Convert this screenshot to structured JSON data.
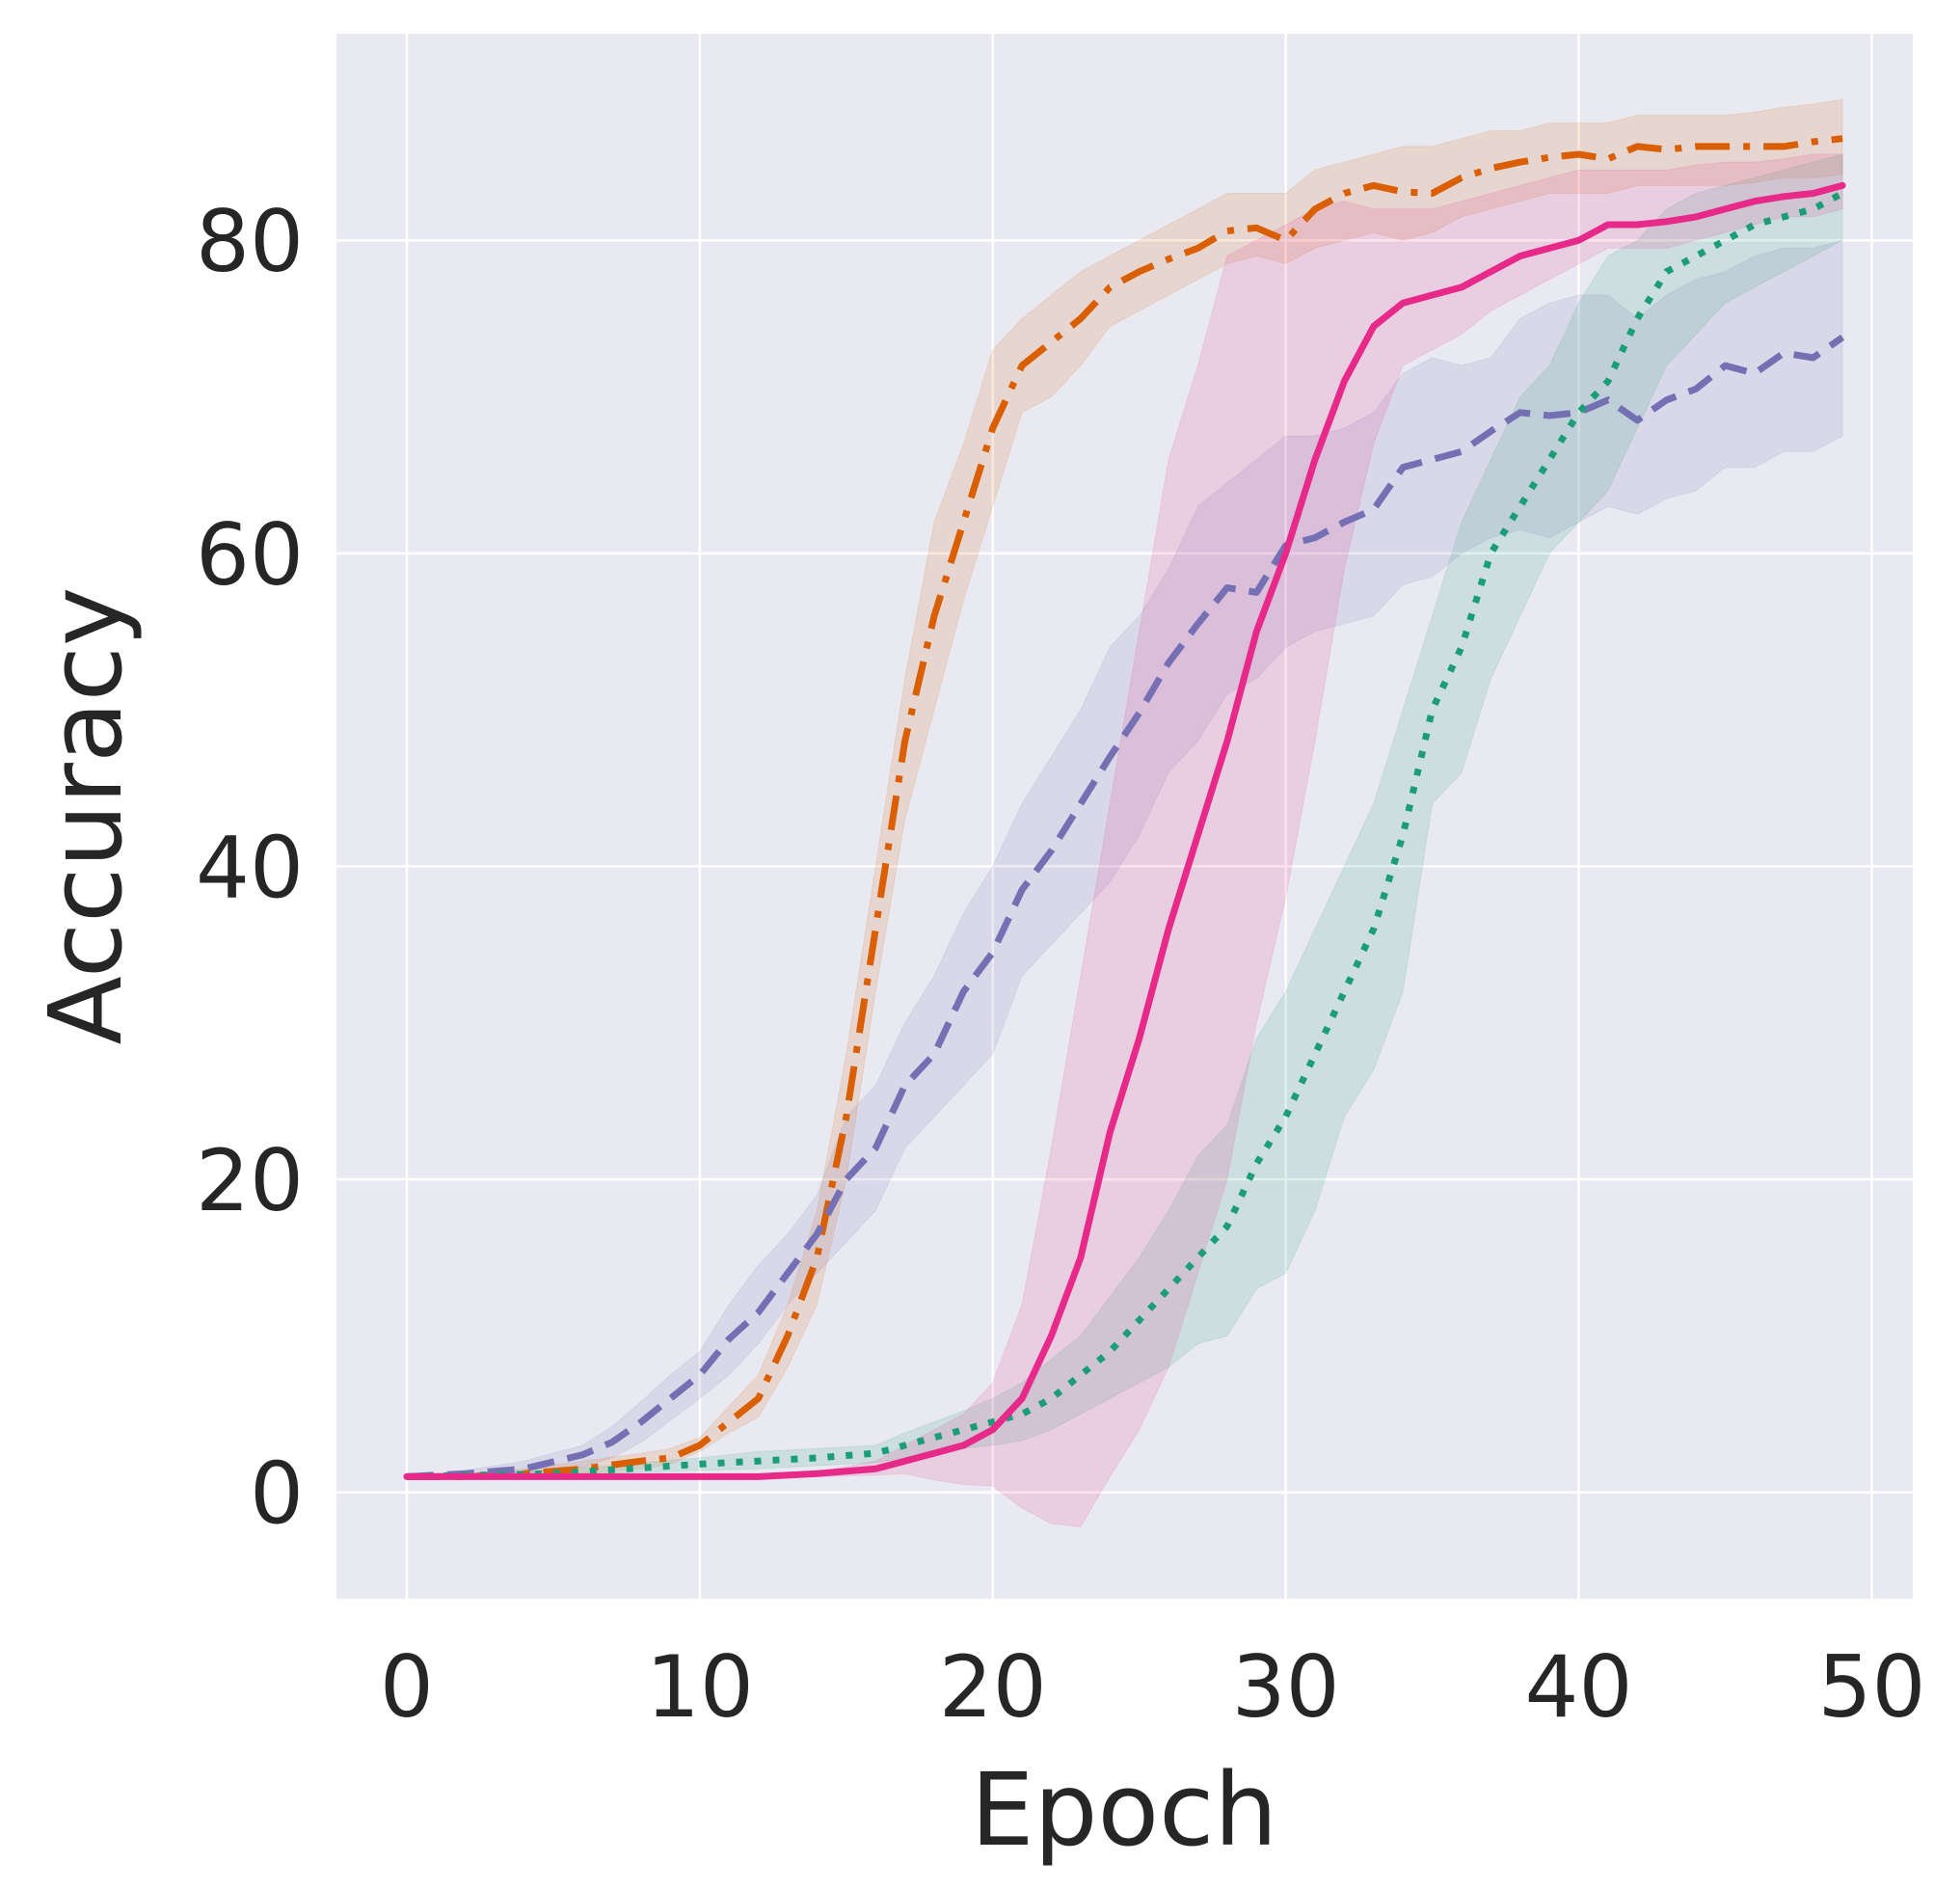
{
  "chart_data": {
    "type": "line",
    "title": "",
    "xlabel": "Epoch",
    "ylabel": "Accuracy",
    "xlim": [
      -2.4,
      51.4
    ],
    "ylim": [
      -6.8,
      93.2
    ],
    "xticks": [
      0,
      10,
      20,
      30,
      40,
      50
    ],
    "xtick_labels": [
      "0",
      "10",
      "20",
      "30",
      "40",
      "50"
    ],
    "yticks": [
      0,
      20,
      40,
      60,
      80
    ],
    "ytick_labels": [
      "0",
      "20",
      "40",
      "60",
      "80"
    ],
    "grid": true,
    "legend": null,
    "background": "#e9e9f1",
    "series": [
      {
        "name": "orange dash-dot",
        "color": "#d95f02",
        "style": "dashdot",
        "x": [
          0,
          2,
          4,
          6,
          8,
          9,
          10,
          11,
          12,
          13,
          14,
          15,
          16,
          17,
          18,
          19,
          20,
          21,
          22,
          23,
          24,
          25,
          26,
          27,
          28,
          29,
          30,
          31,
          32,
          33,
          34,
          35,
          36,
          37,
          38,
          39,
          40,
          41,
          42,
          43,
          44,
          45,
          46,
          47,
          48,
          49
        ],
        "y": [
          1,
          1,
          1.2,
          1.5,
          2,
          2.2,
          3,
          4.5,
          6,
          10,
          15,
          24,
          36,
          48,
          56,
          62,
          68,
          72,
          73.5,
          75,
          77,
          78,
          78.8,
          79.5,
          80.6,
          80.8,
          80,
          82,
          83,
          83.5,
          83.1,
          83,
          84,
          84.6,
          85,
          85.3,
          85.5,
          85.2,
          86,
          85.8,
          86,
          86,
          86,
          86,
          86.3,
          86.5
        ],
        "lower": [
          1,
          1,
          1,
          1.2,
          1.5,
          1.8,
          2.6,
          3.8,
          4.8,
          8,
          12,
          20,
          32,
          43,
          50,
          57,
          63,
          69,
          70,
          72,
          74.5,
          75.5,
          76.5,
          77.5,
          78.5,
          79,
          78.5,
          79.5,
          80,
          80.5,
          80,
          80.5,
          81.5,
          82,
          82.5,
          83,
          83,
          83,
          83.5,
          83.5,
          83.5,
          83.5,
          83.7,
          84,
          84,
          84.2
        ],
        "upper": [
          1,
          1.1,
          1.5,
          2,
          2.5,
          2.8,
          3.5,
          5.5,
          7.5,
          12,
          18,
          28,
          40,
          52,
          62,
          67,
          73,
          75,
          76.5,
          78,
          79,
          80,
          81,
          82,
          83,
          83,
          83,
          84.5,
          85,
          85.5,
          86,
          86,
          86.5,
          87,
          87,
          87.5,
          87.5,
          87.5,
          88,
          88,
          88,
          88,
          88.2,
          88.5,
          88.7,
          89
        ]
      },
      {
        "name": "purple dashed",
        "color": "#7570b3",
        "style": "dashed",
        "x": [
          0,
          2,
          4,
          6,
          7,
          8,
          9,
          10,
          11,
          12,
          13,
          14,
          15,
          16,
          17,
          18,
          19,
          20,
          21,
          22,
          23,
          24,
          25,
          26,
          27,
          28,
          29,
          30,
          31,
          32,
          33,
          34,
          35,
          36,
          37,
          38,
          39,
          40,
          41,
          42,
          43,
          44,
          45,
          46,
          47,
          48,
          49
        ],
        "y": [
          1,
          1.2,
          1.5,
          2.4,
          3.2,
          4.5,
          6,
          7.5,
          9.8,
          11.5,
          14,
          16.5,
          20,
          22,
          26,
          28,
          32,
          34.5,
          38.5,
          41,
          44,
          47,
          49.8,
          53,
          55.5,
          57.8,
          57.5,
          60.5,
          61,
          62,
          62.8,
          65.5,
          66,
          66.5,
          67.8,
          69,
          68.8,
          69,
          69.8,
          68.5,
          69.8,
          70.5,
          72,
          71.5,
          72.8,
          72.5,
          73.8
        ],
        "lower": [
          1,
          1.1,
          1.2,
          1.6,
          2.2,
          3.2,
          4.6,
          6,
          7.5,
          9.5,
          12,
          14,
          16,
          18,
          22,
          24,
          26,
          28,
          33,
          35,
          37,
          39,
          42,
          46,
          48,
          51,
          52,
          54,
          55,
          55.5,
          56,
          58,
          58.5,
          60,
          61,
          61.5,
          61,
          62,
          63,
          62.5,
          63.5,
          64,
          65.5,
          65.5,
          66.5,
          66.5,
          67.5
        ],
        "upper": [
          1,
          1.4,
          2,
          3,
          4.2,
          5.8,
          7.5,
          9,
          12,
          14.5,
          16.5,
          19,
          24,
          26,
          30,
          33,
          37,
          40,
          44,
          47,
          50,
          54,
          56,
          59,
          63,
          64.5,
          66,
          67.5,
          67.5,
          68,
          69,
          71.5,
          72.5,
          72,
          72.5,
          75,
          76,
          76.5,
          76.5,
          75,
          76.5,
          77.5,
          78,
          79,
          79.5,
          79.5,
          80
        ]
      },
      {
        "name": "green dotted",
        "color": "#1b9e77",
        "style": "dotted",
        "x": [
          0,
          5,
          10,
          12,
          14,
          16,
          17,
          18,
          19,
          20,
          21,
          22,
          23,
          24,
          25,
          26,
          27,
          28,
          29,
          30,
          31,
          32,
          33,
          34,
          35,
          36,
          37,
          38,
          39,
          40,
          41,
          42,
          43,
          44,
          45,
          46,
          47,
          48,
          49
        ],
        "y": [
          1,
          1.2,
          1.8,
          2,
          2.2,
          2.5,
          3,
          3.5,
          4,
          4.5,
          5,
          6,
          7.5,
          9,
          11,
          13,
          15,
          17,
          21,
          24,
          28,
          32,
          36,
          42,
          50,
          54,
          60,
          63,
          66,
          69,
          71,
          75,
          78,
          79,
          80,
          81,
          81.5,
          82,
          83
        ],
        "lower": [
          1,
          1.1,
          1.4,
          1.5,
          1.7,
          1.9,
          2.2,
          2.5,
          2.8,
          3,
          3.3,
          4,
          5,
          6,
          7,
          8,
          9.5,
          10,
          13,
          14,
          18,
          24,
          27,
          32,
          44,
          46,
          52,
          56,
          60,
          62,
          64,
          68,
          72,
          74,
          76,
          77,
          78,
          79,
          80
        ],
        "upper": [
          1,
          1.4,
          2.2,
          2.6,
          2.8,
          3,
          3.8,
          4.5,
          5.2,
          6,
          7,
          8.5,
          10,
          12.5,
          15,
          18,
          21.5,
          23.5,
          29,
          32,
          36,
          40,
          44,
          50,
          56,
          62,
          66,
          70,
          72,
          76,
          79,
          80,
          82,
          83,
          83.5,
          84,
          84.5,
          85,
          85.5
        ]
      },
      {
        "name": "pink solid",
        "color": "#e7298a",
        "style": "solid",
        "x": [
          0,
          2,
          4,
          6,
          8,
          10,
          12,
          14,
          16,
          17,
          18,
          19,
          20,
          21,
          22,
          23,
          24,
          25,
          26,
          27,
          28,
          29,
          30,
          31,
          32,
          33,
          34,
          35,
          36,
          37,
          38,
          39,
          40,
          41,
          42,
          43,
          44,
          45,
          46,
          47,
          48,
          49
        ],
        "y": [
          1,
          1,
          1,
          1,
          1,
          1,
          1,
          1.2,
          1.5,
          2,
          2.5,
          3,
          4,
          6,
          10,
          15,
          23,
          29,
          36,
          42,
          48,
          55,
          60,
          66,
          71,
          74.5,
          76,
          76.5,
          77,
          78,
          79,
          79.5,
          80,
          81,
          81,
          81.2,
          81.5,
          82,
          82.5,
          82.8,
          83,
          83.5
        ],
        "lower": [
          1,
          1,
          1,
          1,
          1,
          1,
          1,
          1,
          1.1,
          1.2,
          0.8,
          0.5,
          0.4,
          -1,
          -2,
          -2.2,
          1,
          4,
          8,
          14,
          20,
          30,
          38,
          48,
          59,
          67,
          72,
          73,
          74,
          75.5,
          76.5,
          77.5,
          78.5,
          79.5,
          79.5,
          79.5,
          80,
          80.5,
          81,
          81.5,
          81.5,
          82
        ],
        "upper": [
          1,
          1,
          1,
          1,
          1,
          1,
          1,
          1.3,
          2,
          3,
          4,
          5,
          7,
          12,
          22,
          33,
          44,
          55,
          66,
          72,
          79,
          80,
          81,
          82,
          82.5,
          82,
          82,
          82,
          82.5,
          83,
          83.5,
          84,
          84.5,
          84.5,
          84.5,
          84.5,
          84.8,
          85,
          85,
          85.2,
          85.5,
          85.5
        ]
      }
    ]
  }
}
